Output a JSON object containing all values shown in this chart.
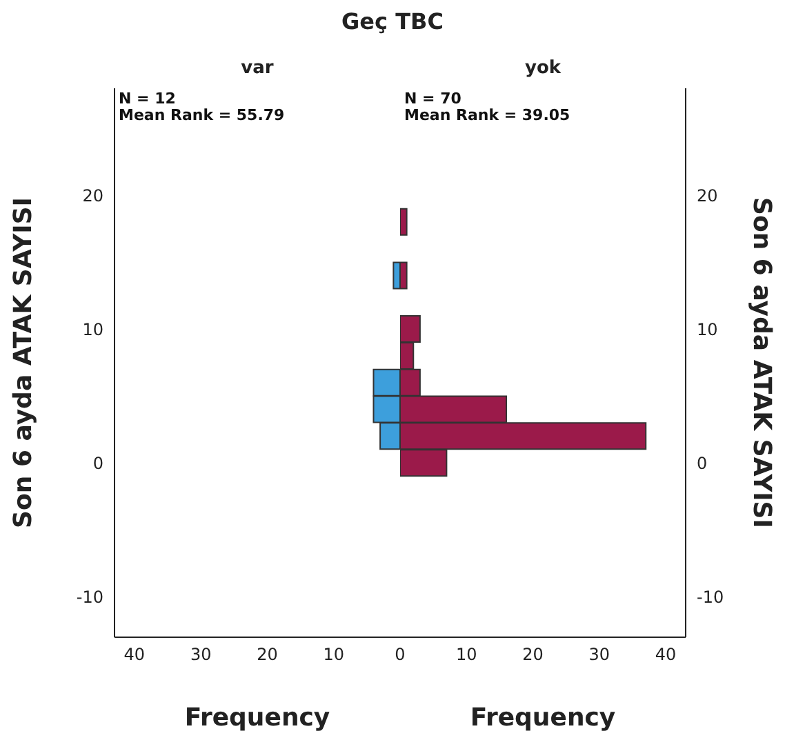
{
  "chart_data": [
    {
      "type": "histogram",
      "orientation": "horizontal",
      "title": "Geç TBC",
      "subtitle": "var",
      "ylabel": "Son 6 ayda ATAK SAYISI",
      "xlabel": "Frequency",
      "annotations": [
        "N = 12",
        "Mean Rank = 55.79"
      ],
      "bins": [
        -1,
        1,
        3,
        5,
        7,
        9,
        11,
        13,
        15,
        17,
        19
      ],
      "values": [
        0,
        3,
        4,
        4,
        0,
        0,
        0,
        1,
        0,
        0
      ],
      "color": "#3d9fdc",
      "xlim": [
        43,
        0
      ],
      "xticks": [
        40,
        30,
        20,
        10
      ],
      "ylim": [
        -13,
        28
      ],
      "yticks": [
        -10,
        0,
        10,
        20
      ]
    },
    {
      "type": "histogram",
      "orientation": "horizontal",
      "subtitle": "yok",
      "ylabel": "Son 6 ayda ATAK SAYISI",
      "xlabel": "Frequency",
      "annotations": [
        "N = 70",
        "Mean Rank = 39.05"
      ],
      "bins": [
        -1,
        1,
        3,
        5,
        7,
        9,
        11,
        13,
        15,
        17,
        19
      ],
      "values": [
        7,
        37,
        16,
        3,
        2,
        3,
        0,
        1,
        0,
        1
      ],
      "color": "#9b1a4a",
      "xlim": [
        0,
        43
      ],
      "xticks": [
        0,
        10,
        20,
        30,
        40
      ],
      "ylim": [
        -13,
        28
      ],
      "yticks": [
        -10,
        0,
        10,
        20
      ]
    }
  ]
}
